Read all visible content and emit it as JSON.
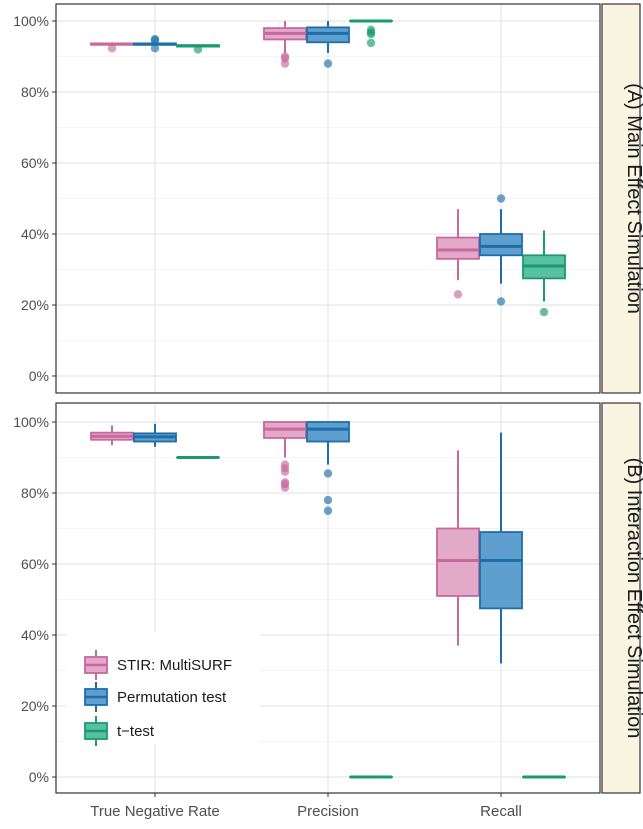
{
  "chart_data": {
    "type": "boxplot",
    "categories": [
      "True Negative Rate",
      "Precision",
      "Recall"
    ],
    "y_axis": {
      "ticks": [
        0,
        20,
        40,
        60,
        80,
        100
      ],
      "tick_labels": [
        "0%",
        "20%",
        "40%",
        "60%",
        "80%",
        "100%"
      ],
      "ylim": [
        -5,
        102
      ],
      "grid": true
    },
    "series": [
      {
        "name": "STIR: MultiSURF",
        "fill": "#E2A9C8",
        "stroke": "#C7689E"
      },
      {
        "name": "Permutation test",
        "fill": "#5E9FD0",
        "stroke": "#1E6FA8"
      },
      {
        "name": "t−test",
        "fill": "#59C0A0",
        "stroke": "#1A9A70"
      }
    ],
    "legend": {
      "position": "bottom-left-inside",
      "items": [
        "STIR: MultiSURF",
        "Permutation test",
        "t−test"
      ]
    },
    "panels": [
      {
        "strip_label": "(A) Main Effect Simulation",
        "boxes": [
          {
            "category": "True Negative Rate",
            "series": "STIR: MultiSURF",
            "q1": 93.3,
            "median": 93.5,
            "q3": 93.7,
            "whisker_low": 93.0,
            "whisker_high": 94.0,
            "outliers": [
              92.3
            ]
          },
          {
            "category": "True Negative Rate",
            "series": "Permutation test",
            "q1": 93.3,
            "median": 93.5,
            "q3": 93.7,
            "whisker_low": 93.0,
            "whisker_high": 94.0,
            "outliers": [
              92.3,
              94.5,
              94.9
            ]
          },
          {
            "category": "True Negative Rate",
            "series": "t−test",
            "q1": 92.8,
            "median": 93.0,
            "q3": 93.2,
            "whisker_low": 92.6,
            "whisker_high": 93.4,
            "outliers": [
              92.0
            ]
          },
          {
            "category": "Precision",
            "series": "STIR: MultiSURF",
            "q1": 94.8,
            "median": 96.5,
            "q3": 98.0,
            "whisker_low": 91.0,
            "whisker_high": 100.0,
            "outliers": [
              90.0,
              89.5,
              88.0
            ]
          },
          {
            "category": "Precision",
            "series": "Permutation test",
            "q1": 94.0,
            "median": 96.5,
            "q3": 98.2,
            "whisker_low": 91.0,
            "whisker_high": 100.0,
            "outliers": [
              88.0
            ]
          },
          {
            "category": "Precision",
            "series": "t−test",
            "q1": 100.0,
            "median": 100.0,
            "q3": 100.0,
            "whisker_low": 100.0,
            "whisker_high": 100.0,
            "outliers": [
              97.5,
              96.8,
              96.3,
              93.8
            ]
          },
          {
            "category": "Recall",
            "series": "STIR: MultiSURF",
            "q1": 33.0,
            "median": 35.5,
            "q3": 39.0,
            "whisker_low": 27.0,
            "whisker_high": 47.0,
            "outliers": [
              23.0
            ]
          },
          {
            "category": "Recall",
            "series": "Permutation test",
            "q1": 34.0,
            "median": 36.5,
            "q3": 40.0,
            "whisker_low": 26.0,
            "whisker_high": 47.0,
            "outliers": [
              50.0,
              21.0
            ]
          },
          {
            "category": "Recall",
            "series": "t−test",
            "q1": 27.5,
            "median": 31.0,
            "q3": 34.0,
            "whisker_low": 21.0,
            "whisker_high": 41.0,
            "outliers": [
              18.0
            ]
          }
        ]
      },
      {
        "strip_label": "(B) Interaction Effect Simulation",
        "boxes": [
          {
            "category": "True Negative Rate",
            "series": "STIR: MultiSURF",
            "q1": 95.0,
            "median": 96.0,
            "q3": 97.0,
            "whisker_low": 93.5,
            "whisker_high": 99.0,
            "outliers": []
          },
          {
            "category": "True Negative Rate",
            "series": "Permutation test",
            "q1": 94.5,
            "median": 95.8,
            "q3": 96.8,
            "whisker_low": 93.0,
            "whisker_high": 99.5,
            "outliers": []
          },
          {
            "category": "True Negative Rate",
            "series": "t−test",
            "q1": 90.0,
            "median": 90.0,
            "q3": 90.0,
            "whisker_low": 90.0,
            "whisker_high": 90.0,
            "outliers": []
          },
          {
            "category": "Precision",
            "series": "STIR: MultiSURF",
            "q1": 95.5,
            "median": 98.0,
            "q3": 100.0,
            "whisker_low": 90.0,
            "whisker_high": 100.0,
            "outliers": [
              88.0,
              87.0,
              86.0,
              83.0,
              82.5,
              81.5
            ]
          },
          {
            "category": "Precision",
            "series": "Permutation test",
            "q1": 94.5,
            "median": 98.0,
            "q3": 100.0,
            "whisker_low": 88.0,
            "whisker_high": 100.0,
            "outliers": [
              85.5,
              78.0,
              75.0
            ]
          },
          {
            "category": "Precision",
            "series": "t−test",
            "q1": 0.0,
            "median": 0.0,
            "q3": 0.0,
            "whisker_low": 0.0,
            "whisker_high": 0.0,
            "outliers": []
          },
          {
            "category": "Recall",
            "series": "STIR: MultiSURF",
            "q1": 51.0,
            "median": 61.0,
            "q3": 70.0,
            "whisker_low": 37.0,
            "whisker_high": 92.0,
            "outliers": []
          },
          {
            "category": "Recall",
            "series": "Permutation test",
            "q1": 47.5,
            "median": 61.0,
            "q3": 69.0,
            "whisker_low": 32.0,
            "whisker_high": 97.0,
            "outliers": []
          },
          {
            "category": "Recall",
            "series": "t−test",
            "q1": 0.0,
            "median": 0.0,
            "q3": 0.0,
            "whisker_low": 0.0,
            "whisker_high": 0.0,
            "outliers": []
          }
        ]
      }
    ]
  }
}
